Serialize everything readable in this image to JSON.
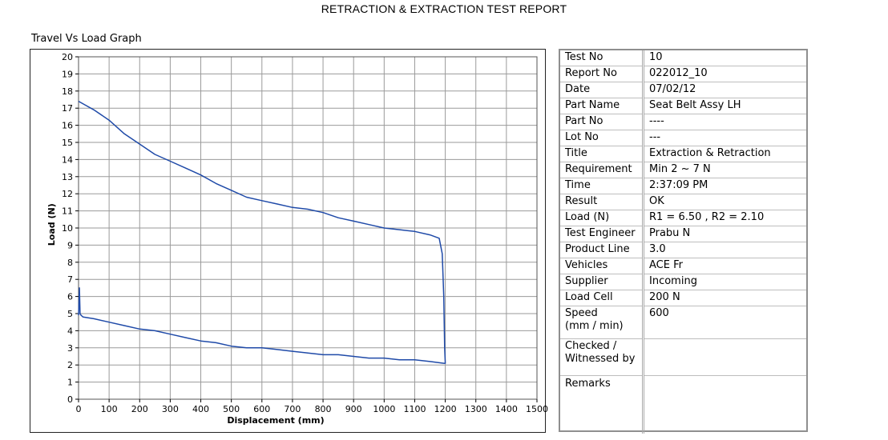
{
  "report_title": "RETRACTION & EXTRACTION TEST REPORT",
  "graph_title": "Travel Vs Load Graph",
  "info_rows": [
    {
      "label": "Test No",
      "value": "10"
    },
    {
      "label": "Report No",
      "value": "022012_10"
    },
    {
      "label": "Date",
      "value": "07/02/12"
    },
    {
      "label": "Part Name",
      "value": "Seat Belt Assy LH"
    },
    {
      "label": "Part No",
      "value": "----"
    },
    {
      "label": "Lot No",
      "value": "---"
    },
    {
      "label": "Title",
      "value": "Extraction & Retraction"
    },
    {
      "label": "Requirement",
      "value": "Min 2 ~ 7 N"
    },
    {
      "label": "Time",
      "value": "2:37:09 PM"
    },
    {
      "label": "Result",
      "value": "OK"
    },
    {
      "label": " Load (N)",
      "value": "R1 = 6.50 , R2 = 2.10"
    },
    {
      "label": "Test Engineer",
      "value": "Prabu N"
    },
    {
      "label": "Product Line",
      "value": "3.0"
    },
    {
      "label": "Vehicles",
      "value": "ACE Fr"
    },
    {
      "label": "Supplier",
      "value": "Incoming"
    },
    {
      "label": "Load Cell",
      "value": "200 N"
    },
    {
      "label": "Speed\n(mm / min)",
      "value": "600"
    },
    {
      "label": "Checked /\nWitnessed by",
      "value": ""
    },
    {
      "label": "Remarks",
      "value": ""
    }
  ],
  "chart_data": {
    "type": "line",
    "title": "",
    "xlabel": "Displacement (mm)",
    "ylabel": "Load (N)",
    "xlim": [
      0,
      1500
    ],
    "ylim": [
      0,
      20
    ],
    "x_ticks": [
      0,
      100,
      200,
      300,
      400,
      500,
      600,
      700,
      800,
      900,
      1000,
      1100,
      1200,
      1300,
      1400,
      1500
    ],
    "y_ticks": [
      0,
      1,
      2,
      3,
      4,
      5,
      6,
      7,
      8,
      9,
      10,
      11,
      12,
      13,
      14,
      15,
      16,
      17,
      18,
      19,
      20
    ],
    "grid": true,
    "line_color": "#1f4aa8",
    "series": [
      {
        "x": [
          0,
          20,
          50,
          100,
          150,
          200,
          250,
          300,
          350,
          400,
          450,
          500,
          550,
          600,
          650,
          700,
          750,
          800,
          850,
          900,
          950,
          1000,
          1050,
          1100,
          1150,
          1180,
          1190,
          1195,
          1198,
          1200,
          1195,
          1150,
          1100,
          1050,
          1000,
          950,
          900,
          850,
          800,
          750,
          700,
          650,
          600,
          550,
          500,
          450,
          400,
          350,
          300,
          250,
          200,
          150,
          100,
          50,
          15,
          8,
          5,
          3,
          0
        ],
        "y": [
          17.4,
          17.2,
          16.9,
          16.3,
          15.5,
          14.9,
          14.3,
          13.9,
          13.5,
          13.1,
          12.6,
          12.2,
          11.8,
          11.6,
          11.4,
          11.2,
          11.1,
          10.9,
          10.6,
          10.4,
          10.2,
          10.0,
          9.9,
          9.8,
          9.6,
          9.4,
          8.5,
          6.0,
          3.0,
          2.1,
          2.1,
          2.2,
          2.3,
          2.3,
          2.4,
          2.4,
          2.5,
          2.6,
          2.6,
          2.7,
          2.8,
          2.9,
          3.0,
          3.0,
          3.1,
          3.3,
          3.4,
          3.6,
          3.8,
          4.0,
          4.1,
          4.3,
          4.5,
          4.7,
          4.8,
          4.9,
          5.0,
          6.5,
          4.9
        ]
      }
    ]
  }
}
